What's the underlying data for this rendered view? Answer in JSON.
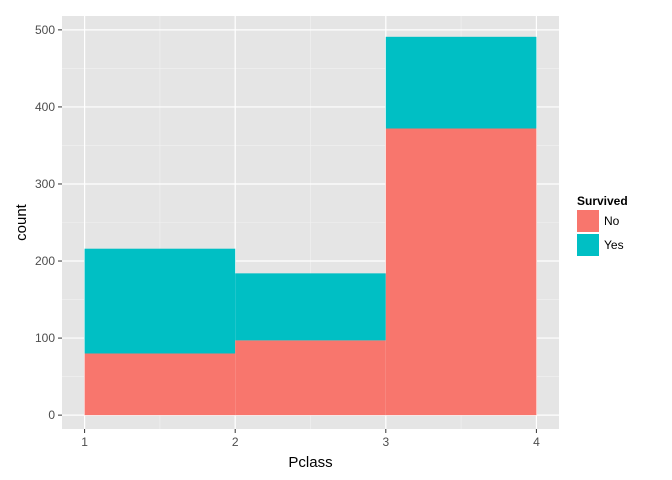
{
  "chart_data": {
    "type": "bar",
    "stacked": true,
    "xlabel": "Pclass",
    "ylabel": "count",
    "xlim": [
      0.85,
      4.15
    ],
    "ylim": [
      -18,
      518
    ],
    "x_ticks": [
      1,
      2,
      3,
      4
    ],
    "y_ticks": [
      0,
      100,
      200,
      300,
      400,
      500
    ],
    "grid": true,
    "bins": [
      {
        "x0": 1,
        "x1": 2
      },
      {
        "x0": 2,
        "x1": 3
      },
      {
        "x0": 3,
        "x1": 4
      }
    ],
    "series": [
      {
        "name": "No",
        "color": "#F8766D",
        "values": [
          80,
          97,
          372
        ]
      },
      {
        "name": "Yes",
        "color": "#00BFC4",
        "values": [
          136,
          87,
          119
        ]
      }
    ],
    "legend": {
      "title": "Survived",
      "placement": "right"
    },
    "colors": {
      "panel": "#E5E5E5",
      "grid_major": "#FFFFFF",
      "grid_minor": "#F2F2F2"
    }
  }
}
